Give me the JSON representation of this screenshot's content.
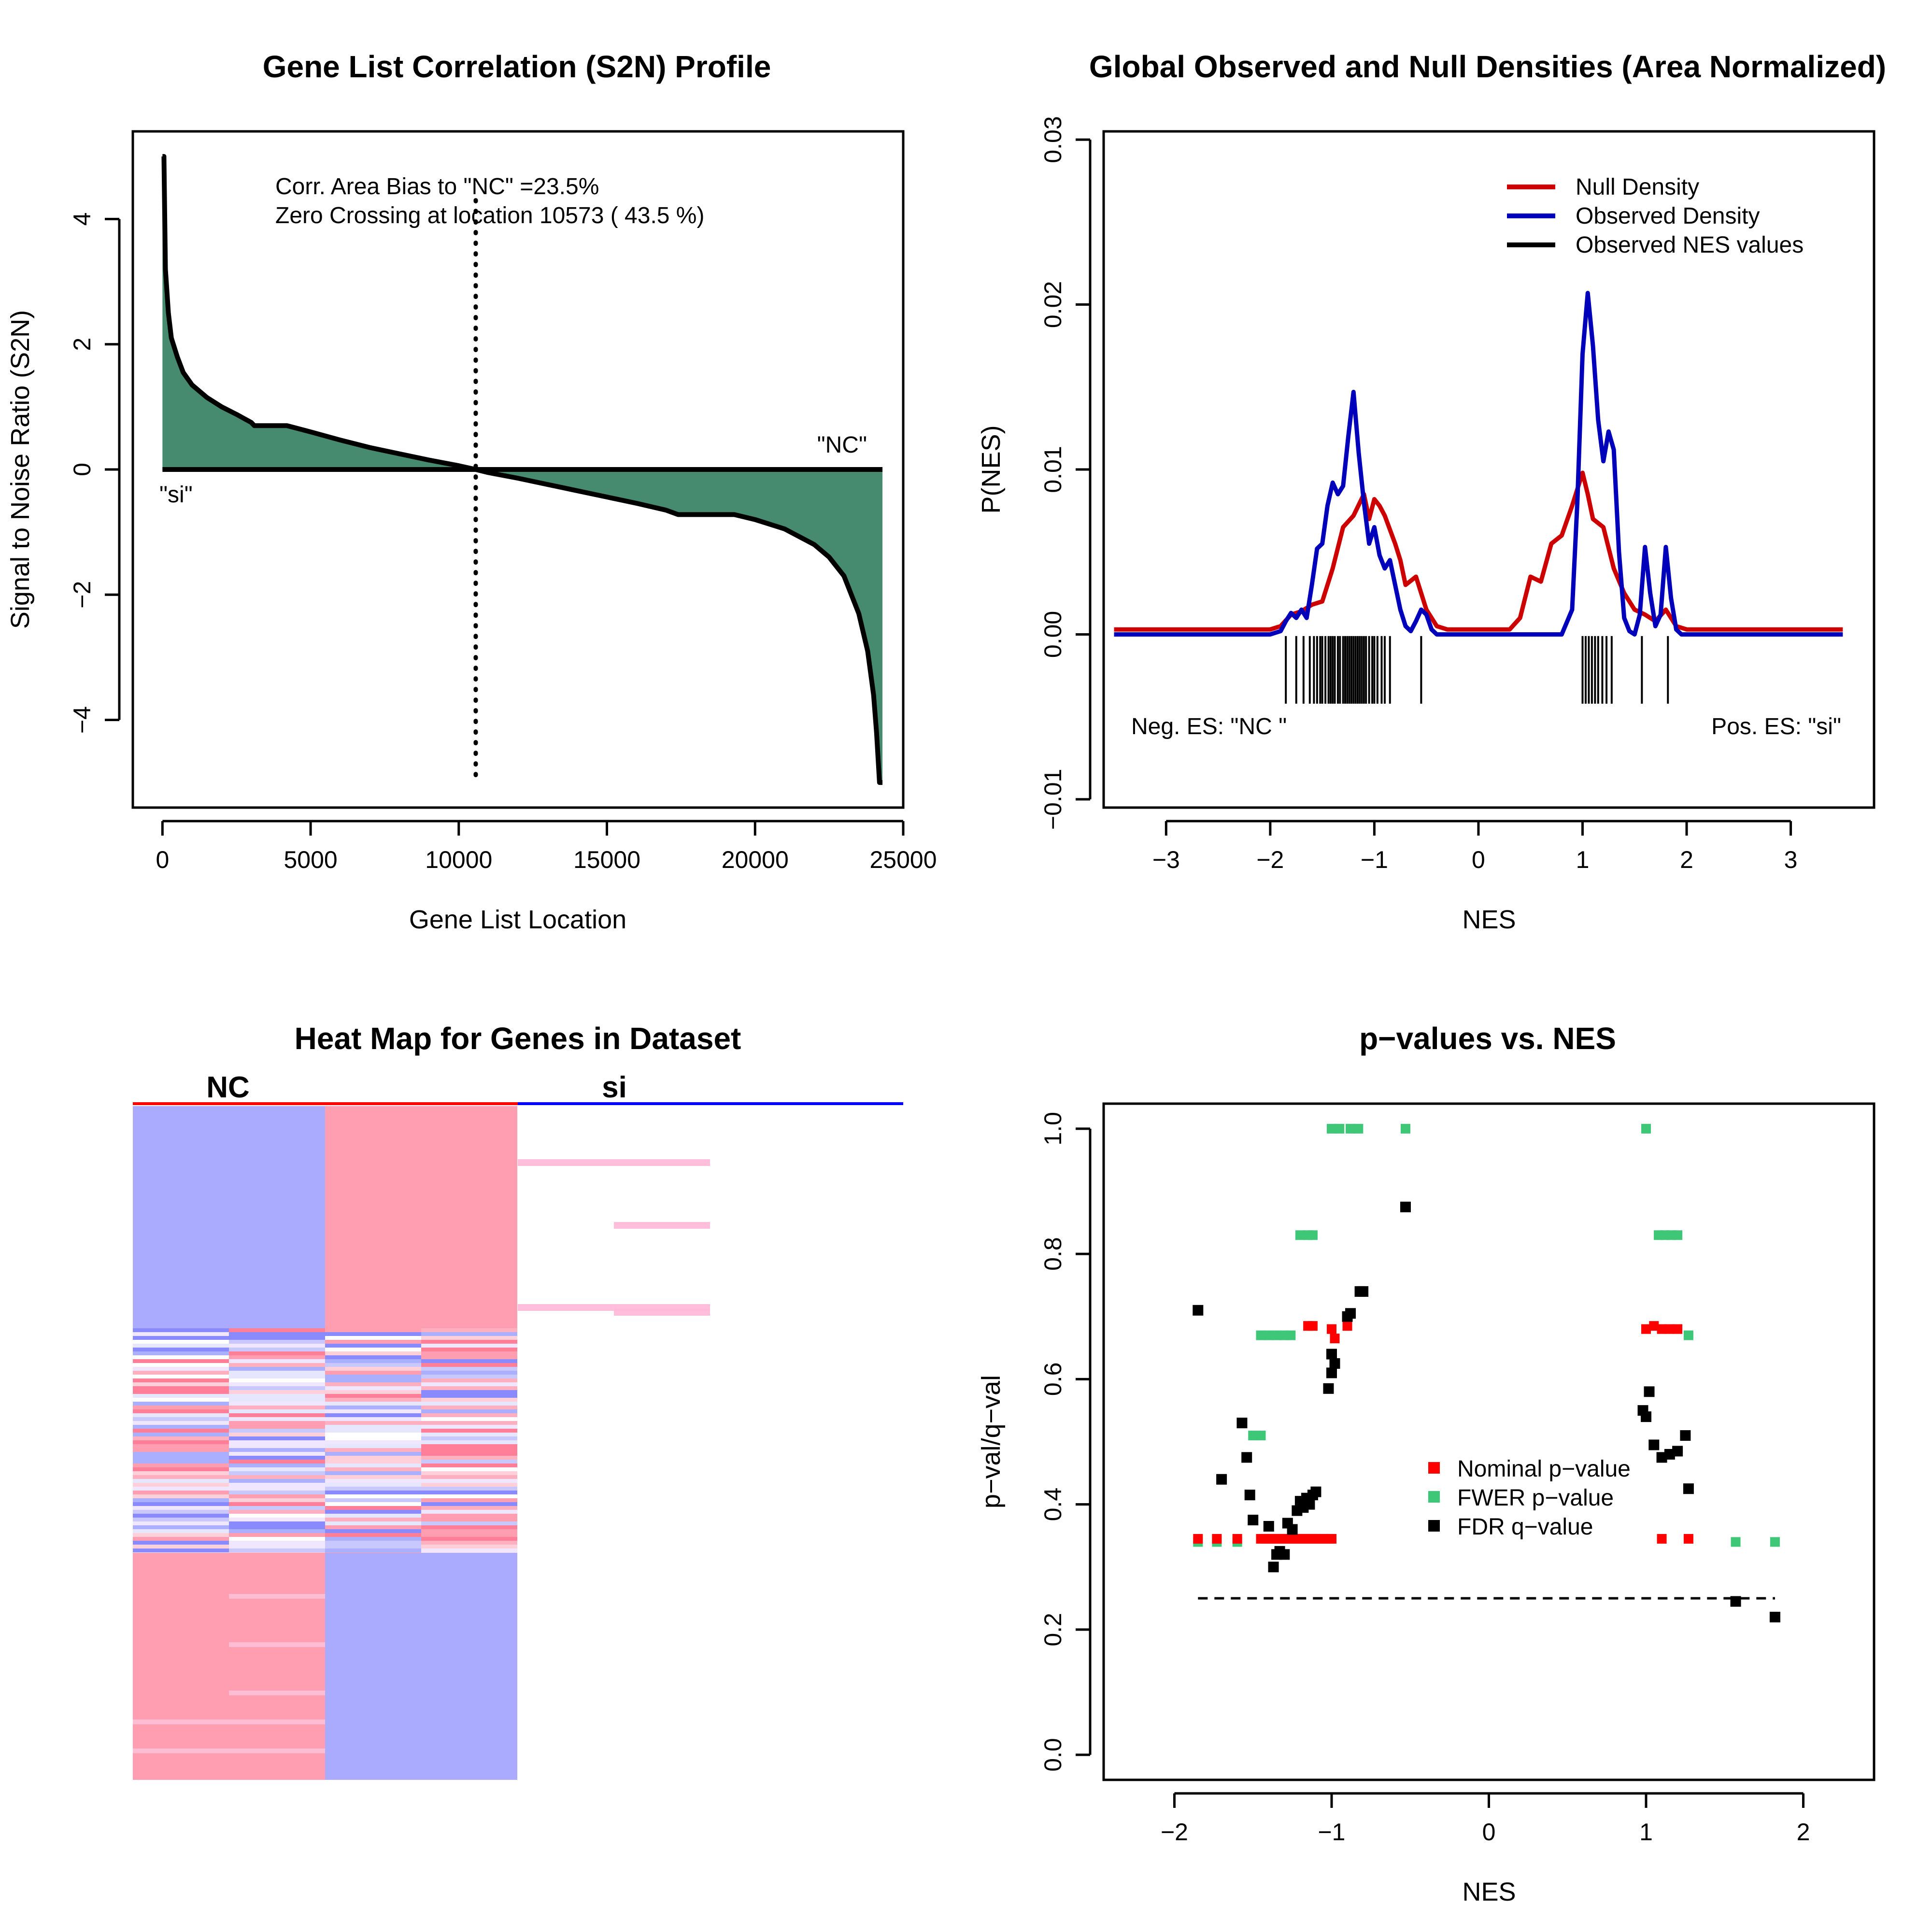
{
  "colors": {
    "area_fill": "#468b70",
    "null_density": "#cc0000",
    "observed_density": "#0000bb",
    "nominal": "#ff0000",
    "fwer": "#3ec777",
    "fdr": "#000000",
    "heat_pink": "#ff9eb0",
    "heat_blue": "#aaaaff"
  },
  "chart_data": [
    {
      "type": "area",
      "title": "Gene List Correlation (S2N) Profile",
      "xlabel": "Gene List Location",
      "ylabel": "Signal to Noise Ratio (S2N)",
      "xlim": [
        -1000,
        25000
      ],
      "ylim": [
        -5.4,
        5.4
      ],
      "xticks": [
        0,
        5000,
        10000,
        15000,
        20000,
        25000
      ],
      "xtick_labels": [
        "0",
        "5000",
        "10000",
        "15000",
        "20000",
        "25000"
      ],
      "yticks": [
        -4,
        -2,
        0,
        2,
        4
      ],
      "ytick_labels": [
        "−4",
        "−2",
        "0",
        "2",
        "4"
      ],
      "annotations": [
        "Corr. Area Bias to \"NC\" =23.5%",
        "Zero Crossing at location  10573  ( 43.5  %)"
      ],
      "left_label": "\"si\"",
      "right_label": "\"NC\"",
      "zero_crossing": 10573,
      "x": [
        0,
        50,
        100,
        200,
        300,
        500,
        700,
        1000,
        1500,
        2000,
        2500,
        3000,
        3100,
        4200,
        5000,
        6000,
        7000,
        8000,
        9000,
        10000,
        10573,
        11000,
        12000,
        13000,
        14000,
        15000,
        16000,
        17000,
        17400,
        19300,
        20000,
        21000,
        22000,
        22500,
        23000,
        23500,
        23800,
        24000,
        24100,
        24150,
        24200,
        24250,
        24300
      ],
      "y": [
        5.0,
        5.0,
        3.2,
        2.5,
        2.1,
        1.8,
        1.55,
        1.35,
        1.15,
        1.0,
        0.88,
        0.75,
        0.7,
        0.7,
        0.6,
        0.47,
        0.35,
        0.25,
        0.15,
        0.06,
        0.0,
        -0.05,
        -0.14,
        -0.24,
        -0.34,
        -0.44,
        -0.54,
        -0.65,
        -0.72,
        -0.72,
        -0.8,
        -0.95,
        -1.2,
        -1.4,
        -1.7,
        -2.3,
        -2.9,
        -3.6,
        -4.2,
        -4.6,
        -5.0,
        -5.0,
        -5.0
      ]
    },
    {
      "type": "line",
      "title": "Global Observed and Null Densities (Area Normalized)",
      "xlabel": "NES",
      "ylabel": "P(NES)",
      "xlim": [
        -3.6,
        3.8
      ],
      "ylim": [
        -0.0105,
        0.0305
      ],
      "xticks": [
        -3,
        -2,
        -1,
        0,
        1,
        2,
        3
      ],
      "xtick_labels": [
        "−3",
        "−2",
        "−1",
        "0",
        "1",
        "2",
        "3"
      ],
      "yticks": [
        -0.01,
        0.0,
        0.01,
        0.02,
        0.03
      ],
      "ytick_labels": [
        "−0.01",
        "0.00",
        "0.01",
        "0.02",
        "0.03"
      ],
      "legend_position": "top-right",
      "left_label": "Neg. ES: \"NC \"",
      "right_label": "Pos. ES: \"si\"",
      "series": [
        {
          "name": "Null Density",
          "x": [
            -3.5,
            -2.0,
            -1.9,
            -1.8,
            -1.7,
            -1.6,
            -1.5,
            -1.4,
            -1.3,
            -1.2,
            -1.1,
            -1.05,
            -1.0,
            -0.95,
            -0.9,
            -0.8,
            -0.75,
            -0.7,
            -0.6,
            -0.5,
            -0.4,
            -0.3,
            0.0,
            0.3,
            0.4,
            0.5,
            0.6,
            0.7,
            0.8,
            0.9,
            1.0,
            1.05,
            1.1,
            1.2,
            1.3,
            1.4,
            1.5,
            1.6,
            1.7,
            1.8,
            1.9,
            2.0,
            3.5
          ],
          "y": [
            0.0003,
            0.0003,
            0.0005,
            0.0012,
            0.0014,
            0.0018,
            0.002,
            0.004,
            0.0065,
            0.0072,
            0.0085,
            0.007,
            0.0082,
            0.0078,
            0.0072,
            0.0055,
            0.0045,
            0.003,
            0.0035,
            0.0015,
            0.0005,
            0.0003,
            0.0003,
            0.0003,
            0.001,
            0.0035,
            0.0032,
            0.0055,
            0.006,
            0.0078,
            0.0098,
            0.0085,
            0.007,
            0.0065,
            0.004,
            0.0025,
            0.0015,
            0.0012,
            0.0008,
            0.0015,
            0.0005,
            0.0003,
            0.0003
          ]
        },
        {
          "name": "Observed Density",
          "x": [
            -3.5,
            -2.0,
            -1.9,
            -1.85,
            -1.8,
            -1.75,
            -1.7,
            -1.65,
            -1.6,
            -1.55,
            -1.5,
            -1.45,
            -1.4,
            -1.35,
            -1.3,
            -1.25,
            -1.2,
            -1.15,
            -1.1,
            -1.05,
            -1.0,
            -0.95,
            -0.9,
            -0.85,
            -0.8,
            -0.75,
            -0.7,
            -0.65,
            -0.6,
            -0.55,
            -0.5,
            -0.45,
            -0.4,
            0.0,
            0.8,
            0.9,
            0.95,
            1.0,
            1.05,
            1.1,
            1.15,
            1.2,
            1.25,
            1.3,
            1.35,
            1.4,
            1.45,
            1.5,
            1.55,
            1.6,
            1.65,
            1.7,
            1.75,
            1.8,
            1.85,
            1.9,
            1.95,
            2.0,
            3.5
          ],
          "y": [
            0.0,
            0.0,
            0.0002,
            0.0008,
            0.0013,
            0.001,
            0.0015,
            0.001,
            0.003,
            0.0052,
            0.0055,
            0.0078,
            0.0092,
            0.0085,
            0.009,
            0.012,
            0.0147,
            0.011,
            0.008,
            0.0055,
            0.0065,
            0.0048,
            0.004,
            0.0045,
            0.003,
            0.0015,
            0.0005,
            0.0002,
            0.0008,
            0.0015,
            0.0012,
            0.0003,
            0.0,
            0.0,
            0.0,
            0.0015,
            0.008,
            0.017,
            0.0207,
            0.0175,
            0.013,
            0.0105,
            0.0123,
            0.0112,
            0.005,
            0.001,
            0.0002,
            0.0,
            0.0012,
            0.0053,
            0.0025,
            0.0005,
            0.0012,
            0.0053,
            0.0022,
            0.0003,
            0.0,
            0.0,
            0.0
          ]
        },
        {
          "name": "Observed NES values",
          "x": [
            -1.85,
            -1.75,
            -1.68,
            -1.62,
            -1.58,
            -1.55,
            -1.52,
            -1.5,
            -1.47,
            -1.44,
            -1.42,
            -1.4,
            -1.38,
            -1.35,
            -1.33,
            -1.3,
            -1.28,
            -1.26,
            -1.24,
            -1.22,
            -1.2,
            -1.18,
            -1.16,
            -1.14,
            -1.12,
            -1.1,
            -1.08,
            -1.05,
            -1.02,
            -1.0,
            -0.97,
            -0.93,
            -0.9,
            -0.85,
            -0.55,
            1.0,
            1.03,
            1.06,
            1.09,
            1.12,
            1.15,
            1.19,
            1.23,
            1.28,
            1.57,
            1.82
          ]
        }
      ]
    },
    {
      "type": "heatmap",
      "title": "Heat Map for Genes in Dataset",
      "groups": [
        "NC",
        "si"
      ],
      "columns": 4,
      "group_colors": [
        "#ff0000",
        "#0000ff"
      ]
    },
    {
      "type": "scatter",
      "title": "p−values vs. NES",
      "xlabel": "NES",
      "ylabel": "p−val/q−val",
      "xlim": [
        -2.45,
        2.45
      ],
      "ylim": [
        -0.04,
        1.04
      ],
      "xticks": [
        -2,
        -1,
        0,
        1,
        2
      ],
      "xtick_labels": [
        "−2",
        "−1",
        "0",
        "1",
        "2"
      ],
      "yticks": [
        0.0,
        0.2,
        0.4,
        0.6,
        0.8,
        1.0
      ],
      "ytick_labels": [
        "0.0",
        "0.2",
        "0.4",
        "0.6",
        "0.8",
        "1.0"
      ],
      "threshold": 0.25,
      "threshold_range": [
        -1.85,
        1.82
      ],
      "legend_position": "center",
      "series": [
        {
          "name": "Nominal p−value",
          "points": [
            [
              -1.85,
              0.345
            ],
            [
              -1.73,
              0.345
            ],
            [
              -1.6,
              0.345
            ],
            [
              -1.45,
              0.345
            ],
            [
              -1.42,
              0.345
            ],
            [
              -1.4,
              0.345
            ],
            [
              -1.38,
              0.345
            ],
            [
              -1.36,
              0.345
            ],
            [
              -1.34,
              0.345
            ],
            [
              -1.32,
              0.345
            ],
            [
              -1.3,
              0.345
            ],
            [
              -1.28,
              0.345
            ],
            [
              -1.26,
              0.345
            ],
            [
              -1.24,
              0.345
            ],
            [
              -1.22,
              0.345
            ],
            [
              -1.2,
              0.345
            ],
            [
              -1.18,
              0.345
            ],
            [
              -1.16,
              0.345
            ],
            [
              -1.14,
              0.345
            ],
            [
              -1.12,
              0.345
            ],
            [
              -1.1,
              0.345
            ],
            [
              -1.08,
              0.345
            ],
            [
              -1.05,
              0.345
            ],
            [
              -1.02,
              0.345
            ],
            [
              -1.0,
              0.345
            ],
            [
              -1.15,
              0.685
            ],
            [
              -1.12,
              0.685
            ],
            [
              -1.0,
              0.68
            ],
            [
              -0.98,
              0.665
            ],
            [
              -0.9,
              0.685
            ],
            [
              1.0,
              0.68
            ],
            [
              1.05,
              0.685
            ],
            [
              1.1,
              0.68
            ],
            [
              1.15,
              0.68
            ],
            [
              1.2,
              0.68
            ],
            [
              1.1,
              0.345
            ],
            [
              1.27,
              0.345
            ]
          ]
        },
        {
          "name": "FWER p−value",
          "points": [
            [
              -1.85,
              0.34
            ],
            [
              -1.73,
              0.34
            ],
            [
              -1.6,
              0.34
            ],
            [
              -1.45,
              0.67
            ],
            [
              -1.4,
              0.67
            ],
            [
              -1.35,
              0.67
            ],
            [
              -1.3,
              0.67
            ],
            [
              -1.26,
              0.67
            ],
            [
              -1.5,
              0.51
            ],
            [
              -1.45,
              0.51
            ],
            [
              -1.2,
              0.83
            ],
            [
              -1.15,
              0.83
            ],
            [
              -1.12,
              0.83
            ],
            [
              -1.0,
              1.0
            ],
            [
              -0.95,
              1.0
            ],
            [
              -0.88,
              1.0
            ],
            [
              -0.83,
              1.0
            ],
            [
              -0.53,
              1.0
            ],
            [
              1.0,
              1.0
            ],
            [
              1.08,
              0.83
            ],
            [
              1.12,
              0.83
            ],
            [
              1.16,
              0.83
            ],
            [
              1.2,
              0.83
            ],
            [
              1.27,
              0.67
            ],
            [
              1.57,
              0.34
            ],
            [
              1.82,
              0.34
            ]
          ]
        },
        {
          "name": "FDR q−value",
          "points": [
            [
              -1.85,
              0.71
            ],
            [
              -1.7,
              0.44
            ],
            [
              -1.57,
              0.53
            ],
            [
              -1.54,
              0.475
            ],
            [
              -1.52,
              0.415
            ],
            [
              -1.5,
              0.375
            ],
            [
              -1.4,
              0.365
            ],
            [
              -1.37,
              0.3
            ],
            [
              -1.35,
              0.32
            ],
            [
              -1.33,
              0.325
            ],
            [
              -1.3,
              0.32
            ],
            [
              -1.28,
              0.37
            ],
            [
              -1.25,
              0.36
            ],
            [
              -1.22,
              0.39
            ],
            [
              -1.2,
              0.405
            ],
            [
              -1.18,
              0.395
            ],
            [
              -1.16,
              0.41
            ],
            [
              -1.14,
              0.4
            ],
            [
              -1.12,
              0.415
            ],
            [
              -1.1,
              0.42
            ],
            [
              -1.02,
              0.585
            ],
            [
              -1.0,
              0.61
            ],
            [
              -0.98,
              0.625
            ],
            [
              -1.0,
              0.64
            ],
            [
              -0.9,
              0.7
            ],
            [
              -0.88,
              0.705
            ],
            [
              -0.82,
              0.74
            ],
            [
              -0.8,
              0.74
            ],
            [
              -0.53,
              0.875
            ],
            [
              0.98,
              0.55
            ],
            [
              1.0,
              0.54
            ],
            [
              1.02,
              0.58
            ],
            [
              1.05,
              0.495
            ],
            [
              1.1,
              0.475
            ],
            [
              1.15,
              0.48
            ],
            [
              1.2,
              0.485
            ],
            [
              1.25,
              0.51
            ],
            [
              1.27,
              0.425
            ],
            [
              1.57,
              0.245
            ],
            [
              1.82,
              0.22
            ]
          ]
        }
      ]
    }
  ]
}
